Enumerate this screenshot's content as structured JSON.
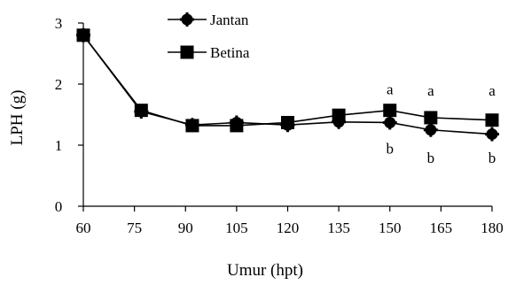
{
  "chart_data": {
    "type": "line",
    "xlabel": "Umur (hpt)",
    "ylabel": "LPH (g)",
    "x": [
      60,
      75,
      90,
      105,
      120,
      135,
      150,
      165,
      180
    ],
    "x_ticks": [
      "60",
      "75",
      "90",
      "105",
      "120",
      "135",
      "150",
      "165",
      "180"
    ],
    "y_ticks": [
      "0",
      "1",
      "2",
      "3"
    ],
    "ylim": [
      0,
      3
    ],
    "grid": false,
    "legend_position": "top-center",
    "series": [
      {
        "name": "Jantan",
        "marker": "circle-cross",
        "x": [
          60,
          77,
          92,
          105,
          120,
          135,
          150,
          162,
          180
        ],
        "values": [
          2.8,
          1.55,
          1.33,
          1.37,
          1.33,
          1.38,
          1.37,
          1.25,
          1.18
        ]
      },
      {
        "name": "Betina",
        "marker": "square",
        "x": [
          60,
          77,
          92,
          105,
          120,
          135,
          150,
          162,
          180
        ],
        "values": [
          2.8,
          1.57,
          1.32,
          1.32,
          1.37,
          1.49,
          1.57,
          1.45,
          1.41
        ]
      }
    ],
    "annotations": [
      {
        "x": 150,
        "y": 1.92,
        "text": "a"
      },
      {
        "x": 162,
        "y": 1.9,
        "text": "a"
      },
      {
        "x": 180,
        "y": 1.9,
        "text": "a"
      },
      {
        "x": 150,
        "y": 0.95,
        "text": "b"
      },
      {
        "x": 162,
        "y": 0.8,
        "text": "b"
      },
      {
        "x": 180,
        "y": 0.8,
        "text": "b"
      }
    ]
  }
}
